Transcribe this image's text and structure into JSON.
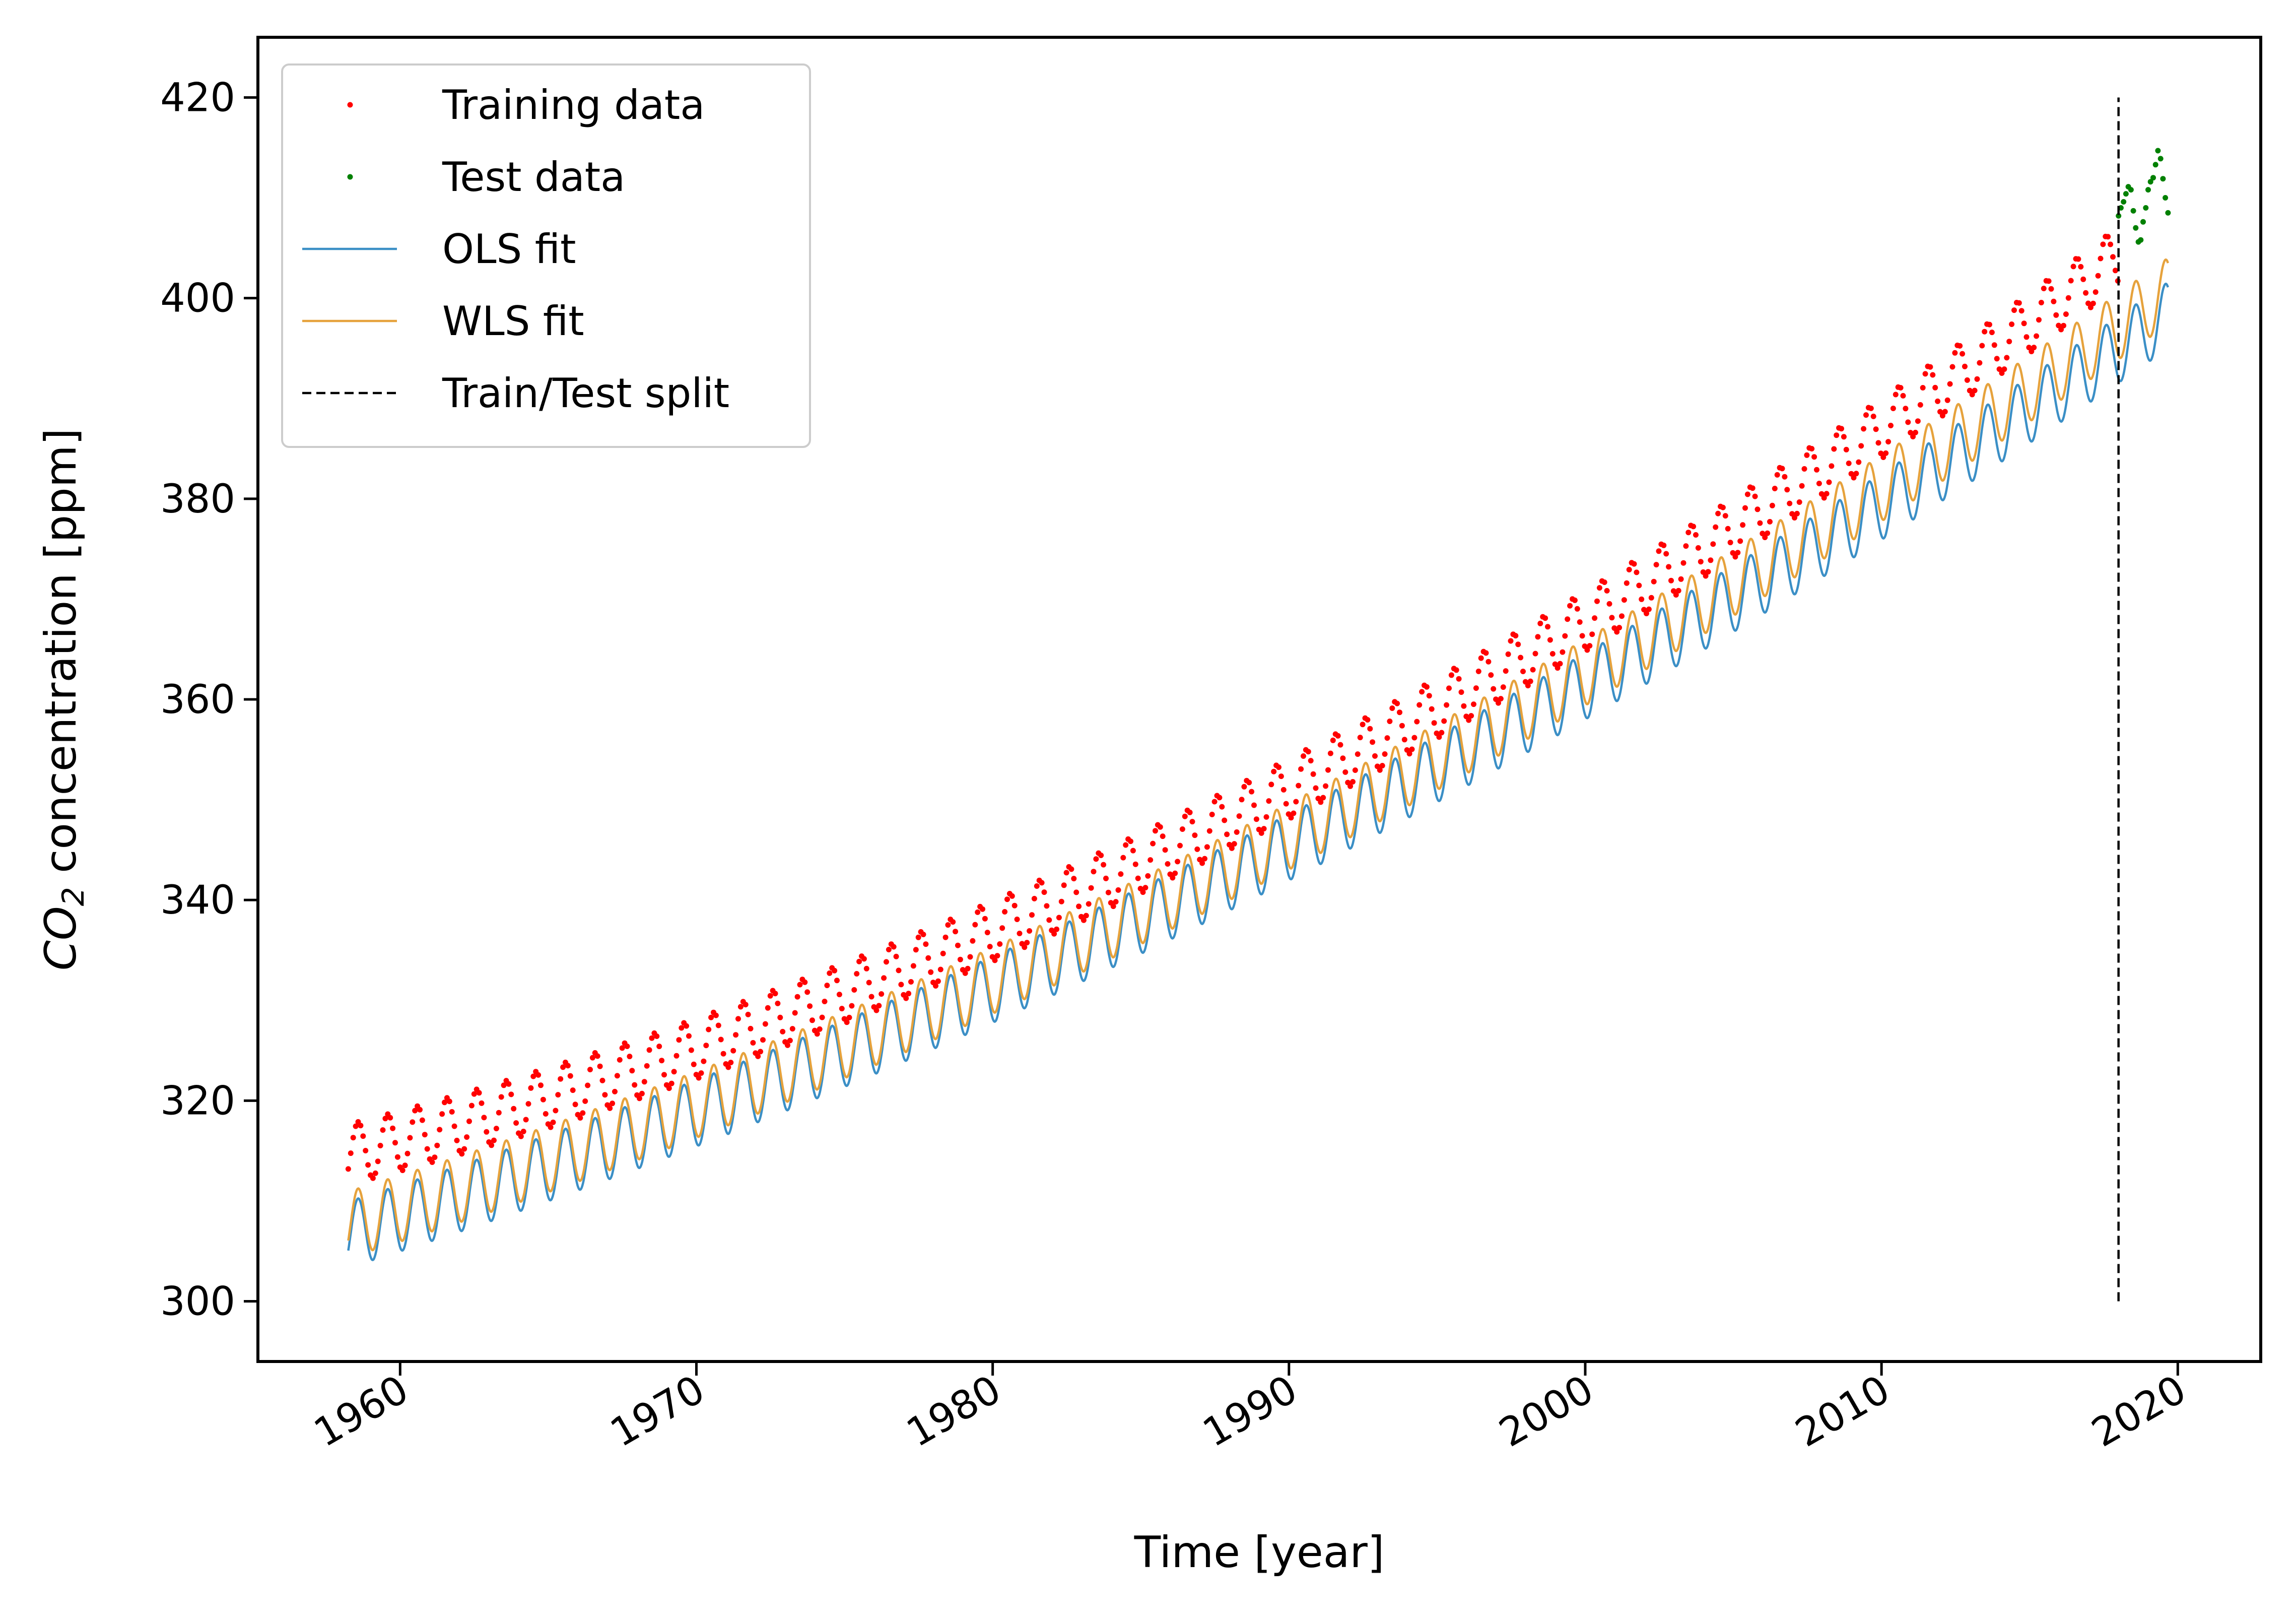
{
  "chart_data": {
    "type": "line",
    "xlabel": "Time [year]",
    "ylabel": {
      "prefix": "CO",
      "subscript": "2",
      "suffix": " concentration [ppm]"
    },
    "xlim": [
      1955.2,
      2022.8
    ],
    "ylim": [
      294,
      426
    ],
    "x_ticks": [
      1960,
      1970,
      1980,
      1990,
      2000,
      2010,
      2020
    ],
    "x_tick_labels": [
      "1960",
      "1970",
      "1980",
      "1990",
      "2000",
      "2010",
      "2020"
    ],
    "y_ticks": [
      300,
      320,
      340,
      360,
      380,
      400,
      420
    ],
    "y_tick_labels": [
      "300",
      "320",
      "340",
      "360",
      "380",
      "400",
      "420"
    ],
    "grid": false,
    "legend_position": "upper-left",
    "series": [
      {
        "name": "Training data",
        "kind": "scatter",
        "color": "#ff0000",
        "x_range": [
          1958.25,
          2018.0
        ],
        "step": 0.0833,
        "trend": {
          "base_year": 1958.2,
          "base": 314.6,
          "slope": 0.75,
          "curvature": 0.0125
        },
        "seasonal_amplitude": 3.0,
        "seasonal_phase": 0.33
      },
      {
        "name": "Test data",
        "kind": "scatter",
        "color": "#008000",
        "points": [
          [
            2018.0,
            408.2
          ],
          [
            2018.08,
            409.0
          ],
          [
            2018.17,
            409.6
          ],
          [
            2018.25,
            410.4
          ],
          [
            2018.33,
            411.1
          ],
          [
            2018.42,
            410.8
          ],
          [
            2018.5,
            408.7
          ],
          [
            2018.58,
            407.0
          ],
          [
            2018.67,
            405.6
          ],
          [
            2018.75,
            405.8
          ],
          [
            2018.83,
            407.6
          ],
          [
            2018.92,
            409.0
          ],
          [
            2019.0,
            410.8
          ],
          [
            2019.08,
            411.6
          ],
          [
            2019.17,
            412.0
          ],
          [
            2019.25,
            413.3
          ],
          [
            2019.33,
            414.7
          ],
          [
            2019.42,
            413.9
          ],
          [
            2019.5,
            411.9
          ],
          [
            2019.58,
            410.0
          ],
          [
            2019.67,
            408.5
          ]
        ]
      },
      {
        "name": "OLS fit",
        "kind": "line",
        "color": "#3b8fc6",
        "x_range": [
          1958.25,
          2019.67
        ],
        "trend": {
          "base_year": 1958.2,
          "base": 306.6,
          "slope": 0.92,
          "curvature": 0.0093
        },
        "seasonal_amplitude": 3.3,
        "seasonal_phase": 0.33
      },
      {
        "name": "WLS fit",
        "kind": "line",
        "color": "#e6a23c",
        "x_range": [
          1958.25,
          2019.67
        ],
        "trend": {
          "base_year": 1958.2,
          "base": 307.6,
          "slope": 0.9,
          "curvature": 0.01
        },
        "seasonal_amplitude": 3.3,
        "seasonal_phase": 0.33
      },
      {
        "name": "Train/Test split",
        "kind": "vline",
        "color": "#000000",
        "x": 2018.0,
        "y_range": [
          300,
          420
        ],
        "dashed": true
      }
    ]
  }
}
